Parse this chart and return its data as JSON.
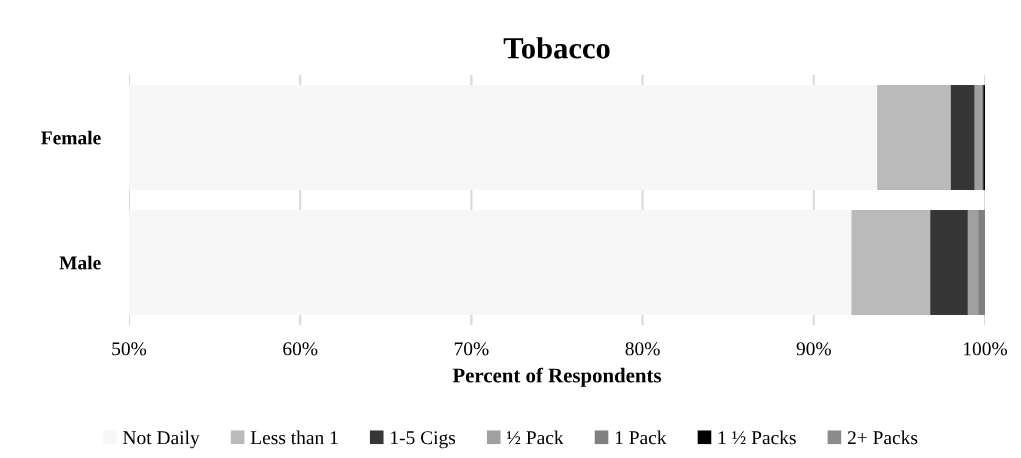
{
  "chart_data": {
    "type": "bar",
    "orientation": "horizontal",
    "title": "Tobacco",
    "xlabel": "Percent of Respondents",
    "categories": [
      "Female",
      "Male"
    ],
    "series": [
      {
        "name": "Not Daily",
        "color": "#f7f7f7",
        "base": [
          0,
          0
        ],
        "values": [
          93.7,
          92.2
        ]
      },
      {
        "name": "Less than 1",
        "color": "#bababa",
        "base": [
          93.7,
          92.2
        ],
        "values": [
          4.3,
          4.6
        ]
      },
      {
        "name": "1-5 Cigs",
        "color": "#363636",
        "base": [
          98.0,
          96.8
        ],
        "values": [
          1.4,
          2.2
        ]
      },
      {
        "name": "½ Pack",
        "color": "#a0a0a0",
        "base": [
          99.4,
          99.0
        ],
        "values": [
          0.4,
          0.6
        ]
      },
      {
        "name": "1 Pack",
        "color": "#808080",
        "base": [
          99.8,
          99.6
        ],
        "values": [
          0.1,
          0.4
        ]
      },
      {
        "name": "1 ½ Packs",
        "color": "#000000",
        "base": [
          99.9,
          null
        ],
        "values": [
          0.1,
          null
        ]
      },
      {
        "name": "2+ Packs",
        "color": "#8c8c8c",
        "base": [
          null,
          null
        ],
        "values": [
          null,
          null
        ]
      }
    ],
    "xlim": [
      50,
      100
    ],
    "xticks": [
      {
        "value": 50,
        "label": "50%"
      },
      {
        "value": 60,
        "label": "60%"
      },
      {
        "value": 70,
        "label": "70%"
      },
      {
        "value": 80,
        "label": "80%"
      },
      {
        "value": 90,
        "label": "90%"
      },
      {
        "value": 100,
        "label": "100%"
      }
    ],
    "grid": "x",
    "legend": "bottom"
  }
}
